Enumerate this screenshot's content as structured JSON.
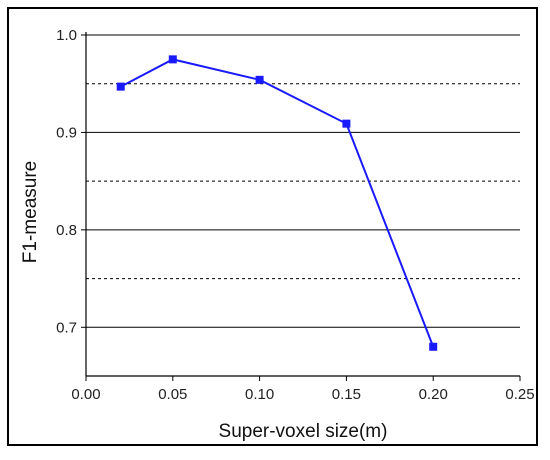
{
  "chart_data": {
    "type": "line",
    "title": "",
    "xlabel": "Super-voxel size(m)",
    "ylabel": "F1-measure",
    "xlim": [
      0.0,
      0.25
    ],
    "ylim": [
      0.65,
      1.0
    ],
    "x_ticks": [
      "0.00",
      "0.05",
      "0.10",
      "0.15",
      "0.20",
      "0.25"
    ],
    "y_ticks": [
      "0.7",
      "0.8",
      "0.9",
      "1.0"
    ],
    "grid": {
      "solid_y": [
        0.7,
        0.8,
        0.9,
        1.0
      ],
      "dashed_y": [
        0.75,
        0.85,
        0.95
      ]
    },
    "series": [
      {
        "color": "#1a1aff",
        "marker": "square",
        "points": [
          {
            "x": 0.02,
            "y": 0.947
          },
          {
            "x": 0.05,
            "y": 0.975
          },
          {
            "x": 0.1,
            "y": 0.954
          },
          {
            "x": 0.15,
            "y": 0.909
          },
          {
            "x": 0.2,
            "y": 0.68
          }
        ]
      }
    ]
  }
}
